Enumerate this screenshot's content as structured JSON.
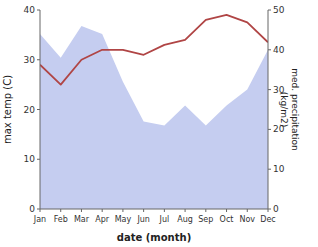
{
  "chart_data": {
    "type": "line",
    "categories": [
      "Jan",
      "Feb",
      "Mar",
      "Apr",
      "May",
      "Jun",
      "Jul",
      "Aug",
      "Sep",
      "Oct",
      "Nov",
      "Dec"
    ],
    "series": [
      {
        "type": "area",
        "axis": "y2",
        "color": "#c5cdf0",
        "values": [
          44,
          38,
          46,
          44,
          32,
          22,
          21,
          26,
          21,
          26,
          30,
          40
        ]
      },
      {
        "type": "line",
        "color": "#b04545",
        "values": [
          29,
          25,
          30,
          32,
          32,
          31,
          33,
          34,
          38,
          39,
          37.5,
          33.5
        ]
      }
    ],
    "xlabel": "date (month)",
    "ylabel": "max temp (C)",
    "y2label": "med. precipitation\n(kg/m2)",
    "ylim": [
      0,
      40
    ],
    "yticks": [
      0,
      10,
      20,
      30,
      40
    ],
    "y2lim": [
      0,
      50
    ],
    "y2ticks": [
      0,
      10,
      20,
      30,
      40,
      50
    ],
    "grid": false
  }
}
